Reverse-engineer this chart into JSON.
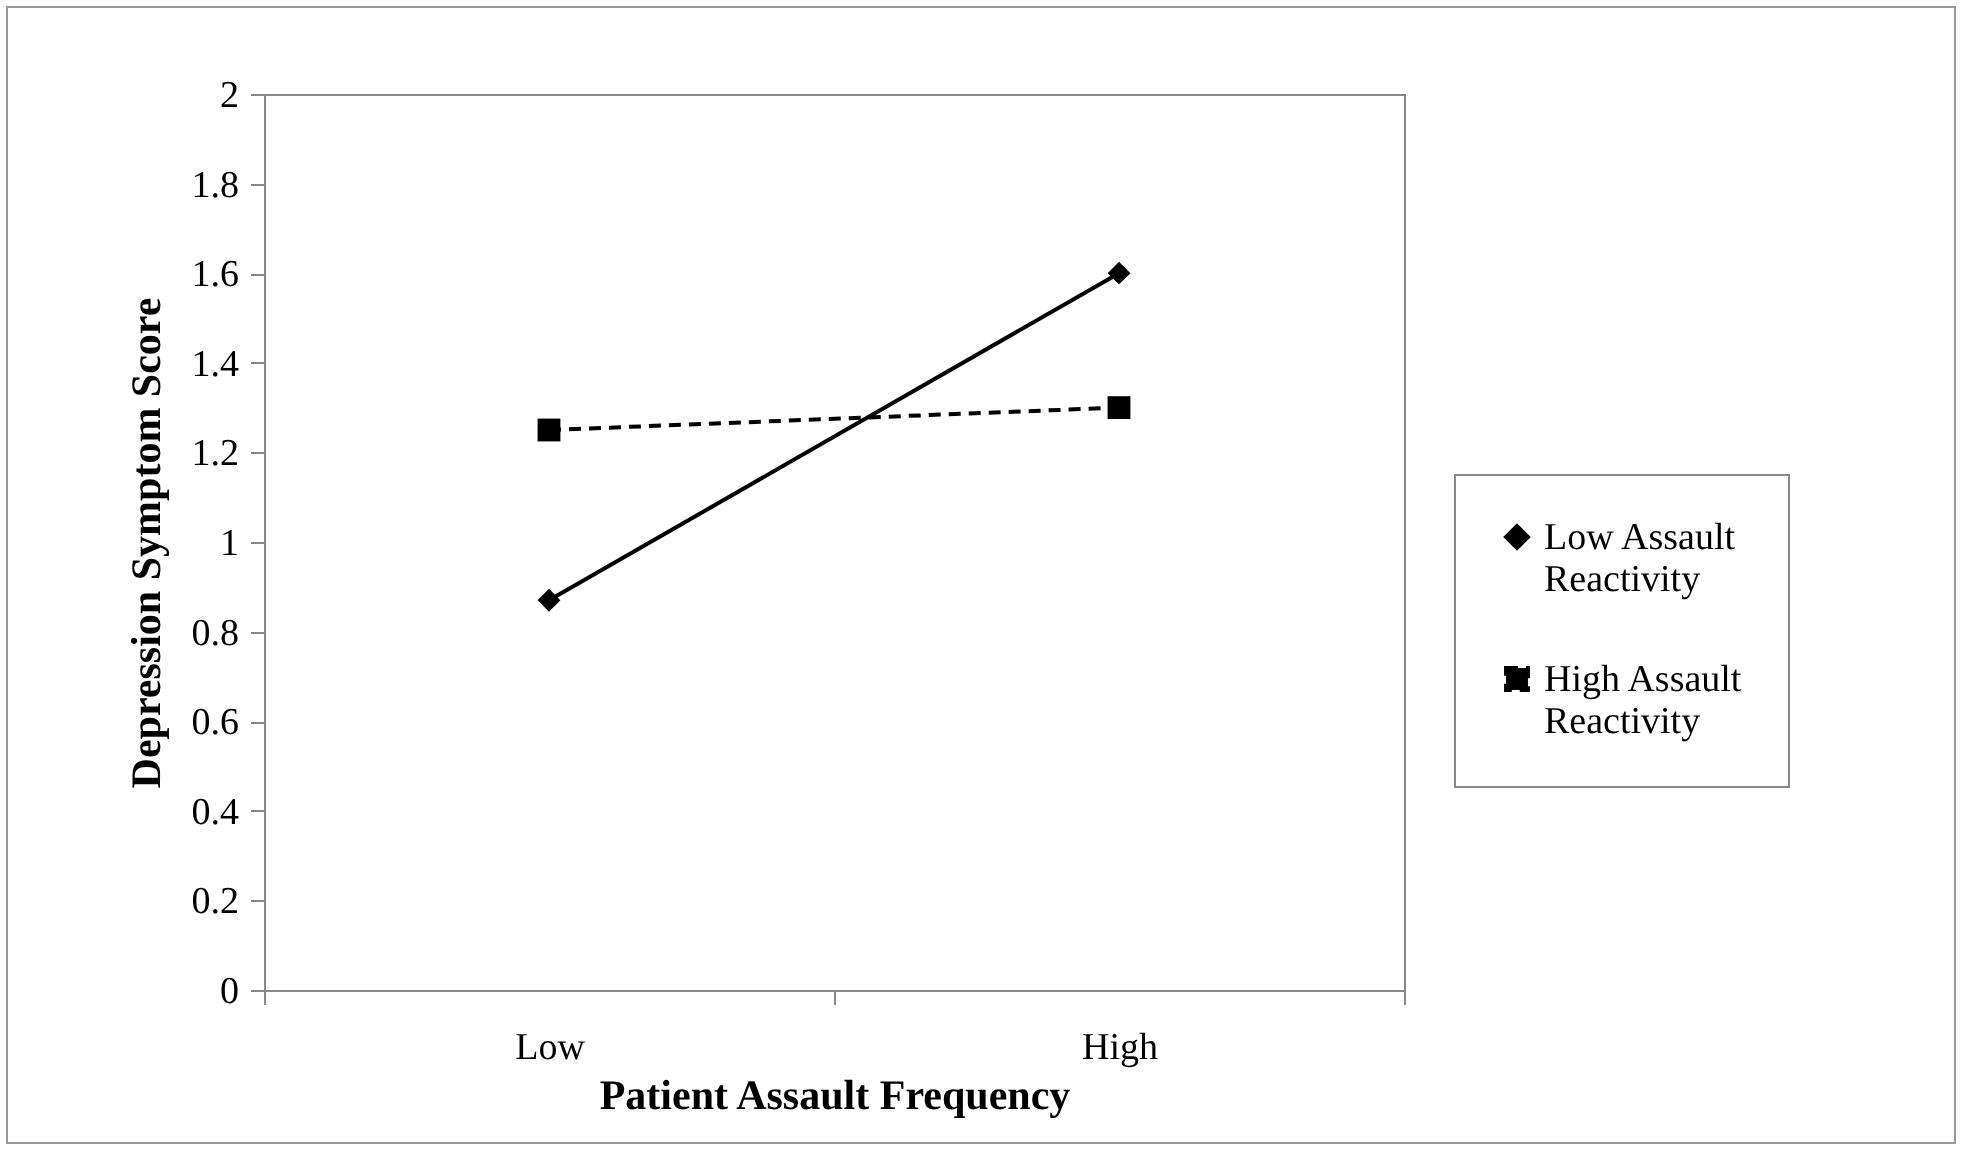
{
  "chart_data": {
    "type": "line",
    "xlabel": "Patient Assault Frequency",
    "ylabel": "Depression Symptom Score",
    "categories": [
      "Low",
      "High"
    ],
    "series": [
      {
        "name": "Low Assault Reactivity",
        "color": "#000000",
        "marker": "diamond",
        "line_style": "solid",
        "values": [
          0.87,
          1.6
        ]
      },
      {
        "name": "High Assault Reactivity",
        "color": "#000000",
        "marker": "square",
        "line_style": "dashed",
        "values": [
          1.25,
          1.3
        ]
      }
    ],
    "ylim": [
      0,
      2
    ],
    "yticks": [
      0,
      0.2,
      0.4,
      0.6,
      0.8,
      1,
      1.2,
      1.4,
      1.6,
      1.8,
      2
    ],
    "grid": false,
    "legend": "right"
  }
}
